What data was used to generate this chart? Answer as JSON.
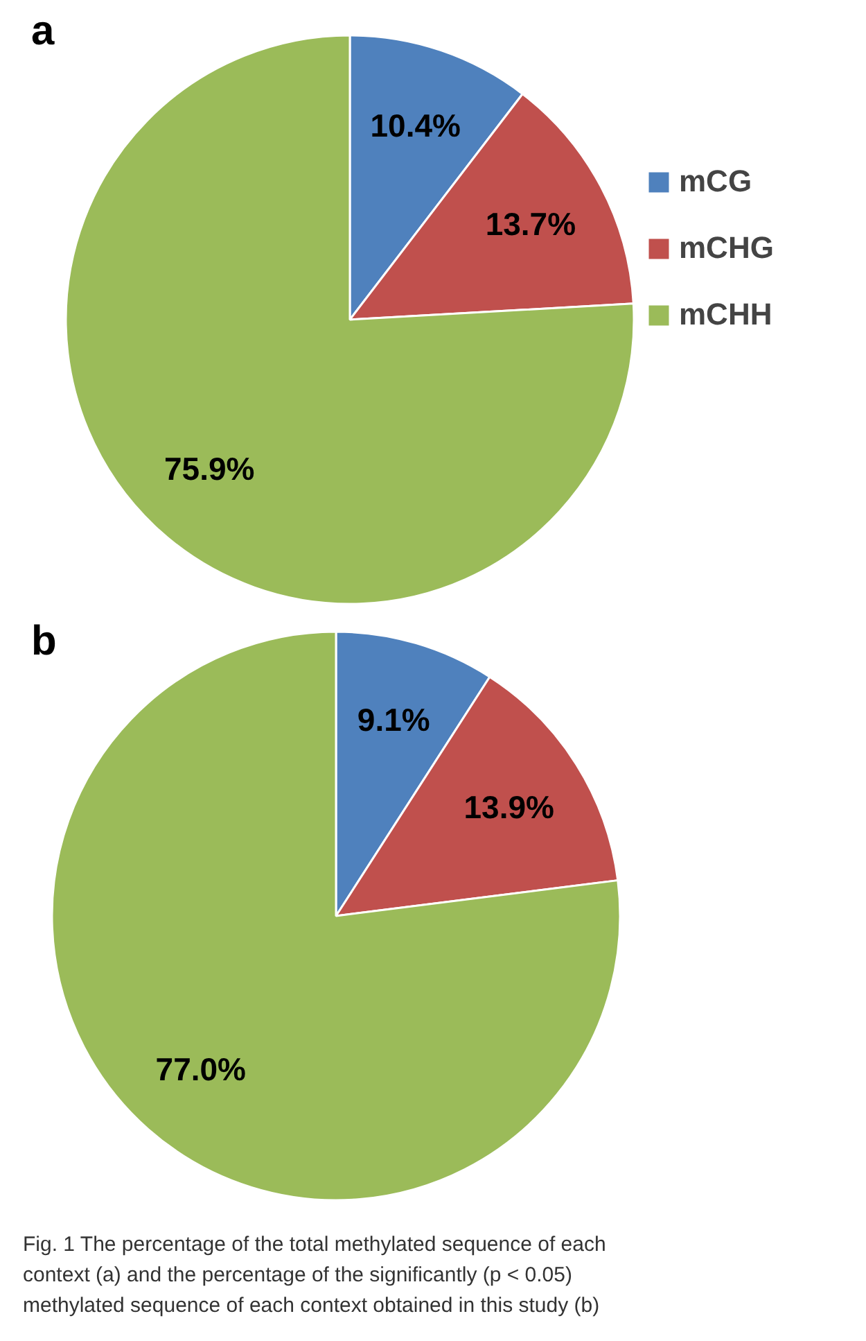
{
  "chart_data": [
    {
      "type": "pie",
      "title": "a",
      "categories": [
        "mCG",
        "mCHG",
        "mCHH"
      ],
      "values": [
        10.4,
        13.7,
        75.9
      ],
      "colors": [
        "#4f81bd",
        "#c0504d",
        "#9bbb59"
      ],
      "value_labels": [
        "10.4%",
        "13.7%",
        "75.9%"
      ],
      "legend": "right"
    },
    {
      "type": "pie",
      "title": "b",
      "categories": [
        null,
        null,
        null
      ],
      "values": [
        9.1,
        13.9,
        77.0
      ],
      "colors": [
        "#4f81bd",
        "#c0504d",
        "#9bbb59"
      ],
      "value_labels": [
        "9.1%",
        "13.9%",
        "77.0%"
      ],
      "legend": false,
      "annotations": [
        "Fig. 1 The percentage of the total methylated sequence of each context (a) and the percentage of the significantly (p < 0.05) methylated sequence of each context obtained in this study (b)"
      ]
    }
  ]
}
